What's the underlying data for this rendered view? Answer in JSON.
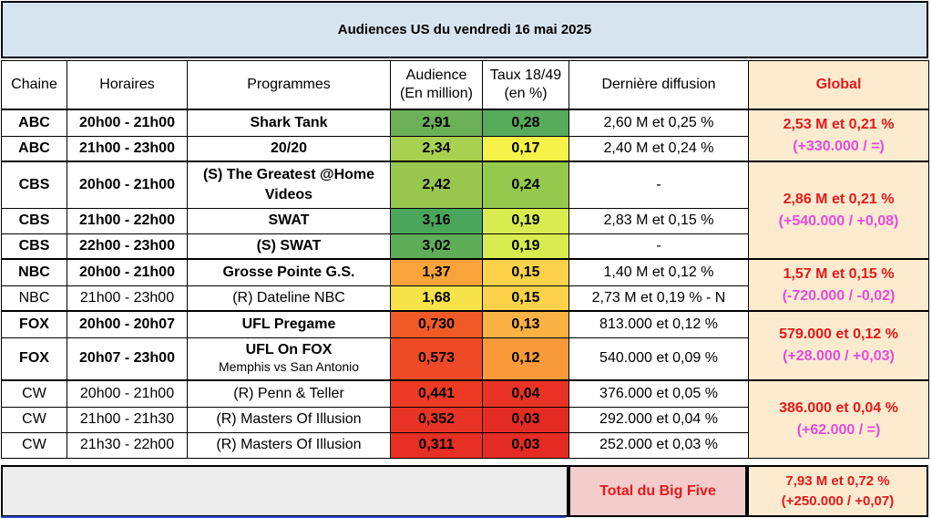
{
  "title": "Audiences US du vendredi 16 mai 2025",
  "headers": {
    "chaine": "Chaine",
    "horaires": "Horaires",
    "programmes": "Programmes",
    "audience_l1": "Audience",
    "audience_l2": "(En million)",
    "taux_l1": "Taux 18/49",
    "taux_l2": "(en %)",
    "derniere": "Dernière diffusion",
    "global": "Global"
  },
  "rows": [
    {
      "chaine": "ABC",
      "horaires": "20h00 - 21h00",
      "programme": "Shark Tank",
      "audience": "2,91",
      "taux": "0,28",
      "derniere": "2,60 M et 0,25 %",
      "aud_color": "#6bb158",
      "taux_color": "#57ab5a"
    },
    {
      "chaine": "ABC",
      "horaires": "21h00 - 23h00",
      "programme": "20/20",
      "audience": "2,34",
      "taux": "0,17",
      "derniere": "2,40 M et 0,24 %",
      "aud_color": "#a8d051",
      "taux_color": "#f7f24a"
    },
    {
      "chaine": "CBS",
      "horaires": "20h00 - 21h00",
      "programme": "(S) The Greatest @Home Videos",
      "audience": "2,42",
      "taux": "0,24",
      "derniere": "-",
      "aud_color": "#99c74e",
      "taux_color": "#94c94e"
    },
    {
      "chaine": "CBS",
      "horaires": "21h00 - 22h00",
      "programme": "SWAT",
      "audience": "3,16",
      "taux": "0,19",
      "derniere": "2,83 M et 0,15 %",
      "aud_color": "#4aa65a",
      "taux_color": "#d8ec50"
    },
    {
      "chaine": "CBS",
      "horaires": "22h00 - 23h00",
      "programme": "(S) SWAT",
      "audience": "3,02",
      "taux": "0,19",
      "derniere": "-",
      "aud_color": "#5fae57",
      "taux_color": "#d8ec50"
    },
    {
      "chaine": "NBC",
      "horaires": "20h00 - 21h00",
      "programme": "Grosse Pointe G.S.",
      "audience": "1,37",
      "taux": "0,15",
      "derniere": "1,40 M et 0,12 %",
      "aud_color": "#f9a43b",
      "taux_color": "#fbd24a"
    },
    {
      "chaine": "NBC",
      "horaires": "21h00 - 23h00",
      "programme": "(R) Dateline NBC",
      "audience": "1,68",
      "taux": "0,15",
      "derniere": "2,73 M et 0,19 % - N",
      "aud_color": "#f7e24a",
      "taux_color": "#fbd24a"
    },
    {
      "chaine": "FOX",
      "horaires": "20h00 - 20h07",
      "programme": "UFL Pregame",
      "audience": "0,730",
      "taux": "0,13",
      "derniere": "813.000 et 0,12 %",
      "aud_color": "#f05a27",
      "taux_color": "#fbb244"
    },
    {
      "chaine": "FOX",
      "horaires": "20h07 - 23h00",
      "programme": "UFL On FOX",
      "programme_sub": "Memphis vs San Antonio",
      "audience": "0,573",
      "taux": "0,12",
      "derniere": "540.000 et 0,09 %",
      "aud_color": "#ee4a27",
      "taux_color": "#f99a3a"
    },
    {
      "chaine": "CW",
      "horaires": "20h00 - 21h00",
      "programme": "(R) Penn & Teller",
      "audience": "0,441",
      "taux": "0,04",
      "derniere": "376.000 et 0,05 %",
      "aud_color": "#ec3a24",
      "taux_color": "#e83324"
    },
    {
      "chaine": "CW",
      "horaires": "21h00 - 21h30",
      "programme": "(R) Masters Of Illusion",
      "audience": "0,352",
      "taux": "0,03",
      "derniere": "292.000 et 0,04 %",
      "aud_color": "#e93324",
      "taux_color": "#e42b24"
    },
    {
      "chaine": "CW",
      "horaires": "21h30 - 22h00",
      "programme": "(R) Masters Of Illusion",
      "audience": "0,311",
      "taux": "0,03",
      "derniere": "252.000 et 0,03 %",
      "aud_color": "#e72f24",
      "taux_color": "#e42b24"
    }
  ],
  "globals": {
    "abc": {
      "main": "2,53 M et 0,21 %",
      "sub": "(+330.000 / =)"
    },
    "cbs": {
      "main": "2,86 M et 0,21 %",
      "sub": "(+540.000 / +0,08)"
    },
    "nbc": {
      "main": "1,57 M et 0,15 %",
      "sub": "(-720.000 / -0,02)"
    },
    "fox": {
      "main": "579.000 et 0,12 %",
      "sub": "(+28.000 / +0,03)"
    },
    "cw": {
      "main": "386.000 et 0,04 %",
      "sub": "(+62.000 / =)"
    }
  },
  "footer": {
    "label": "Total du Big Five",
    "main": "7,93 M et 0,72 %",
    "sub": "(+250.000 / +0,07)"
  },
  "colors": {
    "title_bg": "#d6e4f0",
    "global_bg": "#fdebd0",
    "global_red": "#e41a1a",
    "global_pink": "#e64bdc",
    "footer_label_bg": "#f4cccc"
  }
}
